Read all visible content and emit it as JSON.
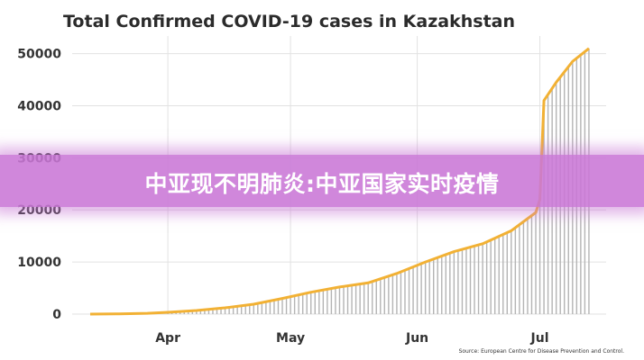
{
  "banner": {
    "text": "中亚现不明肺炎:中亚国家实时疫情"
  },
  "chart_data": {
    "type": "bar",
    "title": "Total Confirmed COVID-19 cases in Kazakhstan",
    "source": "Source: European Centre for Disease Prevention and Control.",
    "xlabel": "",
    "ylabel": "",
    "x_ticks": [
      "Apr",
      "May",
      "Jun",
      "Jul"
    ],
    "x_tick_dates": [
      "2020-04-01",
      "2020-05-01",
      "2020-06-01",
      "2020-07-01"
    ],
    "x_range": [
      "2020-03-13",
      "2020-07-15"
    ],
    "bars_start": "2020-04-01",
    "ylim": [
      0,
      52000
    ],
    "y_ticks": [
      0,
      10000,
      20000,
      30000,
      40000,
      50000
    ],
    "grid": true,
    "bar_color": "#b4b4b4",
    "line_color": "#f2b134",
    "series": [
      {
        "points": [
          [
            "2020-03-13",
            0
          ],
          [
            "2020-03-20",
            50
          ],
          [
            "2020-03-27",
            150
          ],
          [
            "2020-04-01",
            350
          ],
          [
            "2020-04-08",
            700
          ],
          [
            "2020-04-15",
            1200
          ],
          [
            "2020-04-22",
            1900
          ],
          [
            "2020-04-29",
            3000
          ],
          [
            "2020-05-06",
            4200
          ],
          [
            "2020-05-13",
            5200
          ],
          [
            "2020-05-20",
            6000
          ],
          [
            "2020-05-27",
            7800
          ],
          [
            "2020-06-03",
            10000
          ],
          [
            "2020-06-10",
            12000
          ],
          [
            "2020-06-17",
            13500
          ],
          [
            "2020-06-24",
            16000
          ],
          [
            "2020-06-30",
            19500
          ],
          [
            "2020-07-01",
            22000
          ],
          [
            "2020-07-02",
            41000
          ],
          [
            "2020-07-05",
            44500
          ],
          [
            "2020-07-09",
            48500
          ],
          [
            "2020-07-13",
            51000
          ]
        ]
      }
    ]
  }
}
